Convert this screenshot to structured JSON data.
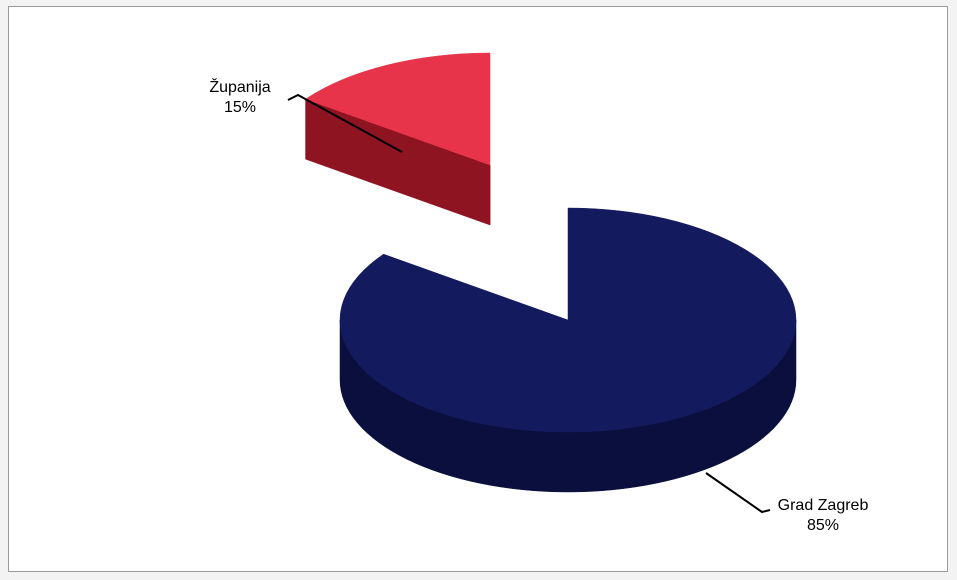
{
  "chart_data": {
    "type": "pie",
    "style": "3d-exploded",
    "slices": [
      {
        "category": "Županija",
        "value": 15,
        "value_label": "15%",
        "color": "#e8344a",
        "side_color": "#8e1422"
      },
      {
        "category": "Grad Zagreb",
        "value": 85,
        "value_label": "85%",
        "color": "#131a5e",
        "side_color": "#0b0f3e"
      }
    ],
    "legend": "none"
  }
}
